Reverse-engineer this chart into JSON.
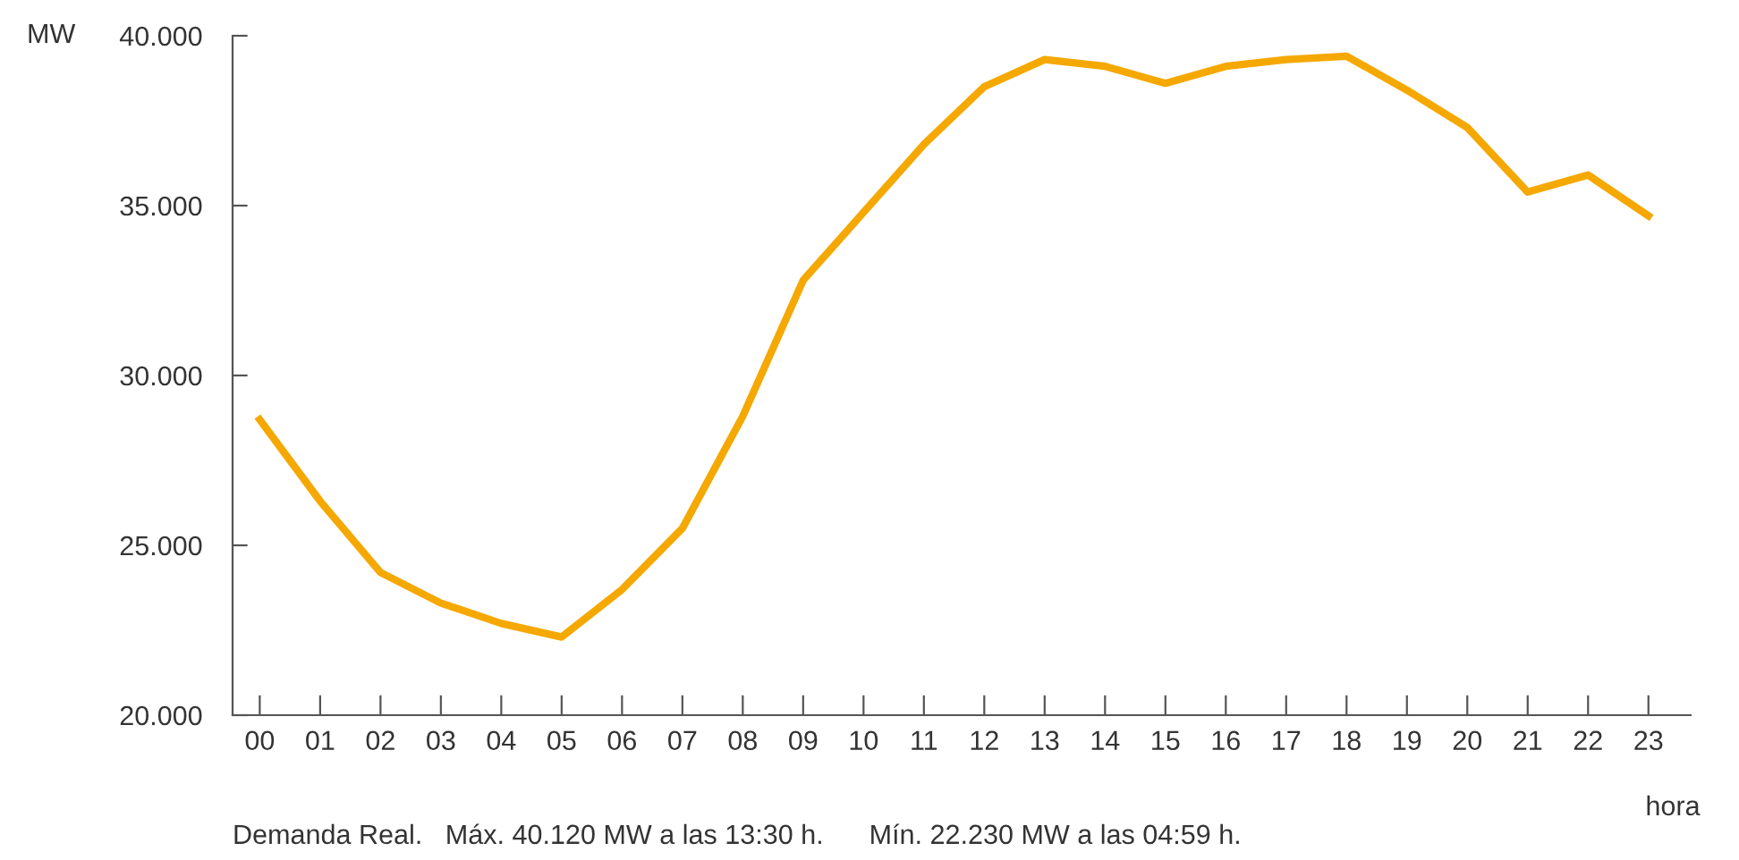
{
  "chart_data": {
    "type": "line",
    "ylabel": "MW",
    "xlabel": "hora",
    "categories": [
      "00",
      "01",
      "02",
      "03",
      "04",
      "05",
      "06",
      "07",
      "08",
      "09",
      "10",
      "11",
      "12",
      "13",
      "14",
      "15",
      "16",
      "17",
      "18",
      "19",
      "20",
      "21",
      "22",
      "23"
    ],
    "series": [
      {
        "color": "#f5a800",
        "values": [
          28700,
          26300,
          24200,
          23300,
          22700,
          22300,
          23700,
          25500,
          28800,
          32800,
          34800,
          36800,
          38500,
          39300,
          39100,
          38600,
          39100,
          39300,
          39400,
          38400,
          37300,
          35400,
          35900,
          34700
        ]
      }
    ],
    "ylim": [
      20000,
      40000
    ],
    "yticks": [
      {
        "value": 20000,
        "label": "20.000"
      },
      {
        "value": 25000,
        "label": "25.000"
      },
      {
        "value": 30000,
        "label": "30.000"
      },
      {
        "value": 35000,
        "label": "35.000"
      },
      {
        "value": 40000,
        "label": "40.000"
      }
    ],
    "grid": false,
    "marker": "none",
    "line_style": "solid",
    "annotations": [
      "Demanda Real.   Máx. 40.120 MW a las 13:30 h.      Mín. 22.230 MW a las 04:59 h."
    ]
  }
}
